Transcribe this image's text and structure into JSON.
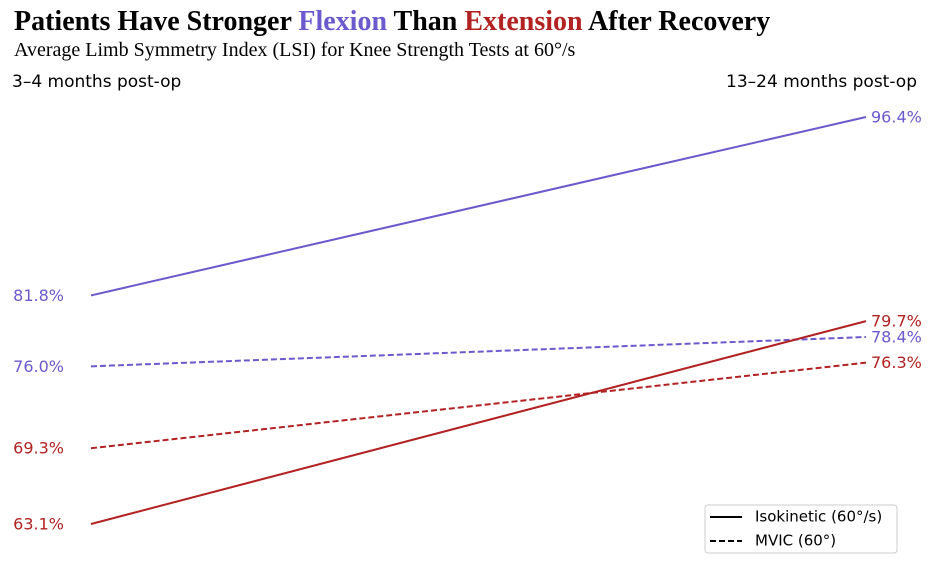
{
  "chart_data": {
    "type": "line",
    "title_parts": [
      {
        "text": "Patients Have Stronger ",
        "color": "#000000"
      },
      {
        "text": "Flexion",
        "color": "#6a5acd"
      },
      {
        "text": " Than ",
        "color": "#000000"
      },
      {
        "text": "Extension",
        "color": "#b22222"
      },
      {
        "text": " After Recovery",
        "color": "#000000"
      }
    ],
    "subtitle": "Average Limb Symmetry Index (LSI) for Knee Strength Tests at 60°/s",
    "categories": [
      "3–4 months post-op",
      "13–24 months post-op"
    ],
    "ylim": [
      63.1,
      96.4
    ],
    "grid": false,
    "legend_position": "bottom-right",
    "series": [
      {
        "name": "Flexion Isokinetic",
        "group": "Flexion",
        "test": "Isokinetic",
        "color": "#6a5acd",
        "dash": "solid",
        "values": [
          81.8,
          96.4
        ],
        "labels": [
          "81.8%",
          "96.4%"
        ]
      },
      {
        "name": "Flexion MVIC",
        "group": "Flexion",
        "test": "MVIC",
        "color": "#6a5acd",
        "dash": "dashed",
        "values": [
          76.0,
          78.4
        ],
        "labels": [
          "76.0%",
          "78.4%"
        ]
      },
      {
        "name": "Extension Isokinetic",
        "group": "Extension",
        "test": "Isokinetic",
        "color": "#b22222",
        "dash": "solid",
        "values": [
          63.1,
          79.7
        ],
        "labels": [
          "63.1%",
          "79.7%"
        ]
      },
      {
        "name": "Extension MVIC",
        "group": "Extension",
        "test": "MVIC",
        "color": "#b22222",
        "dash": "dashed",
        "values": [
          69.3,
          76.3
        ],
        "labels": [
          "69.3%",
          "76.3%"
        ]
      }
    ],
    "legend": [
      {
        "label": "Isokinetic (60°/s)",
        "dash": "solid"
      },
      {
        "label": "MVIC (60°)",
        "dash": "dashed"
      }
    ]
  }
}
